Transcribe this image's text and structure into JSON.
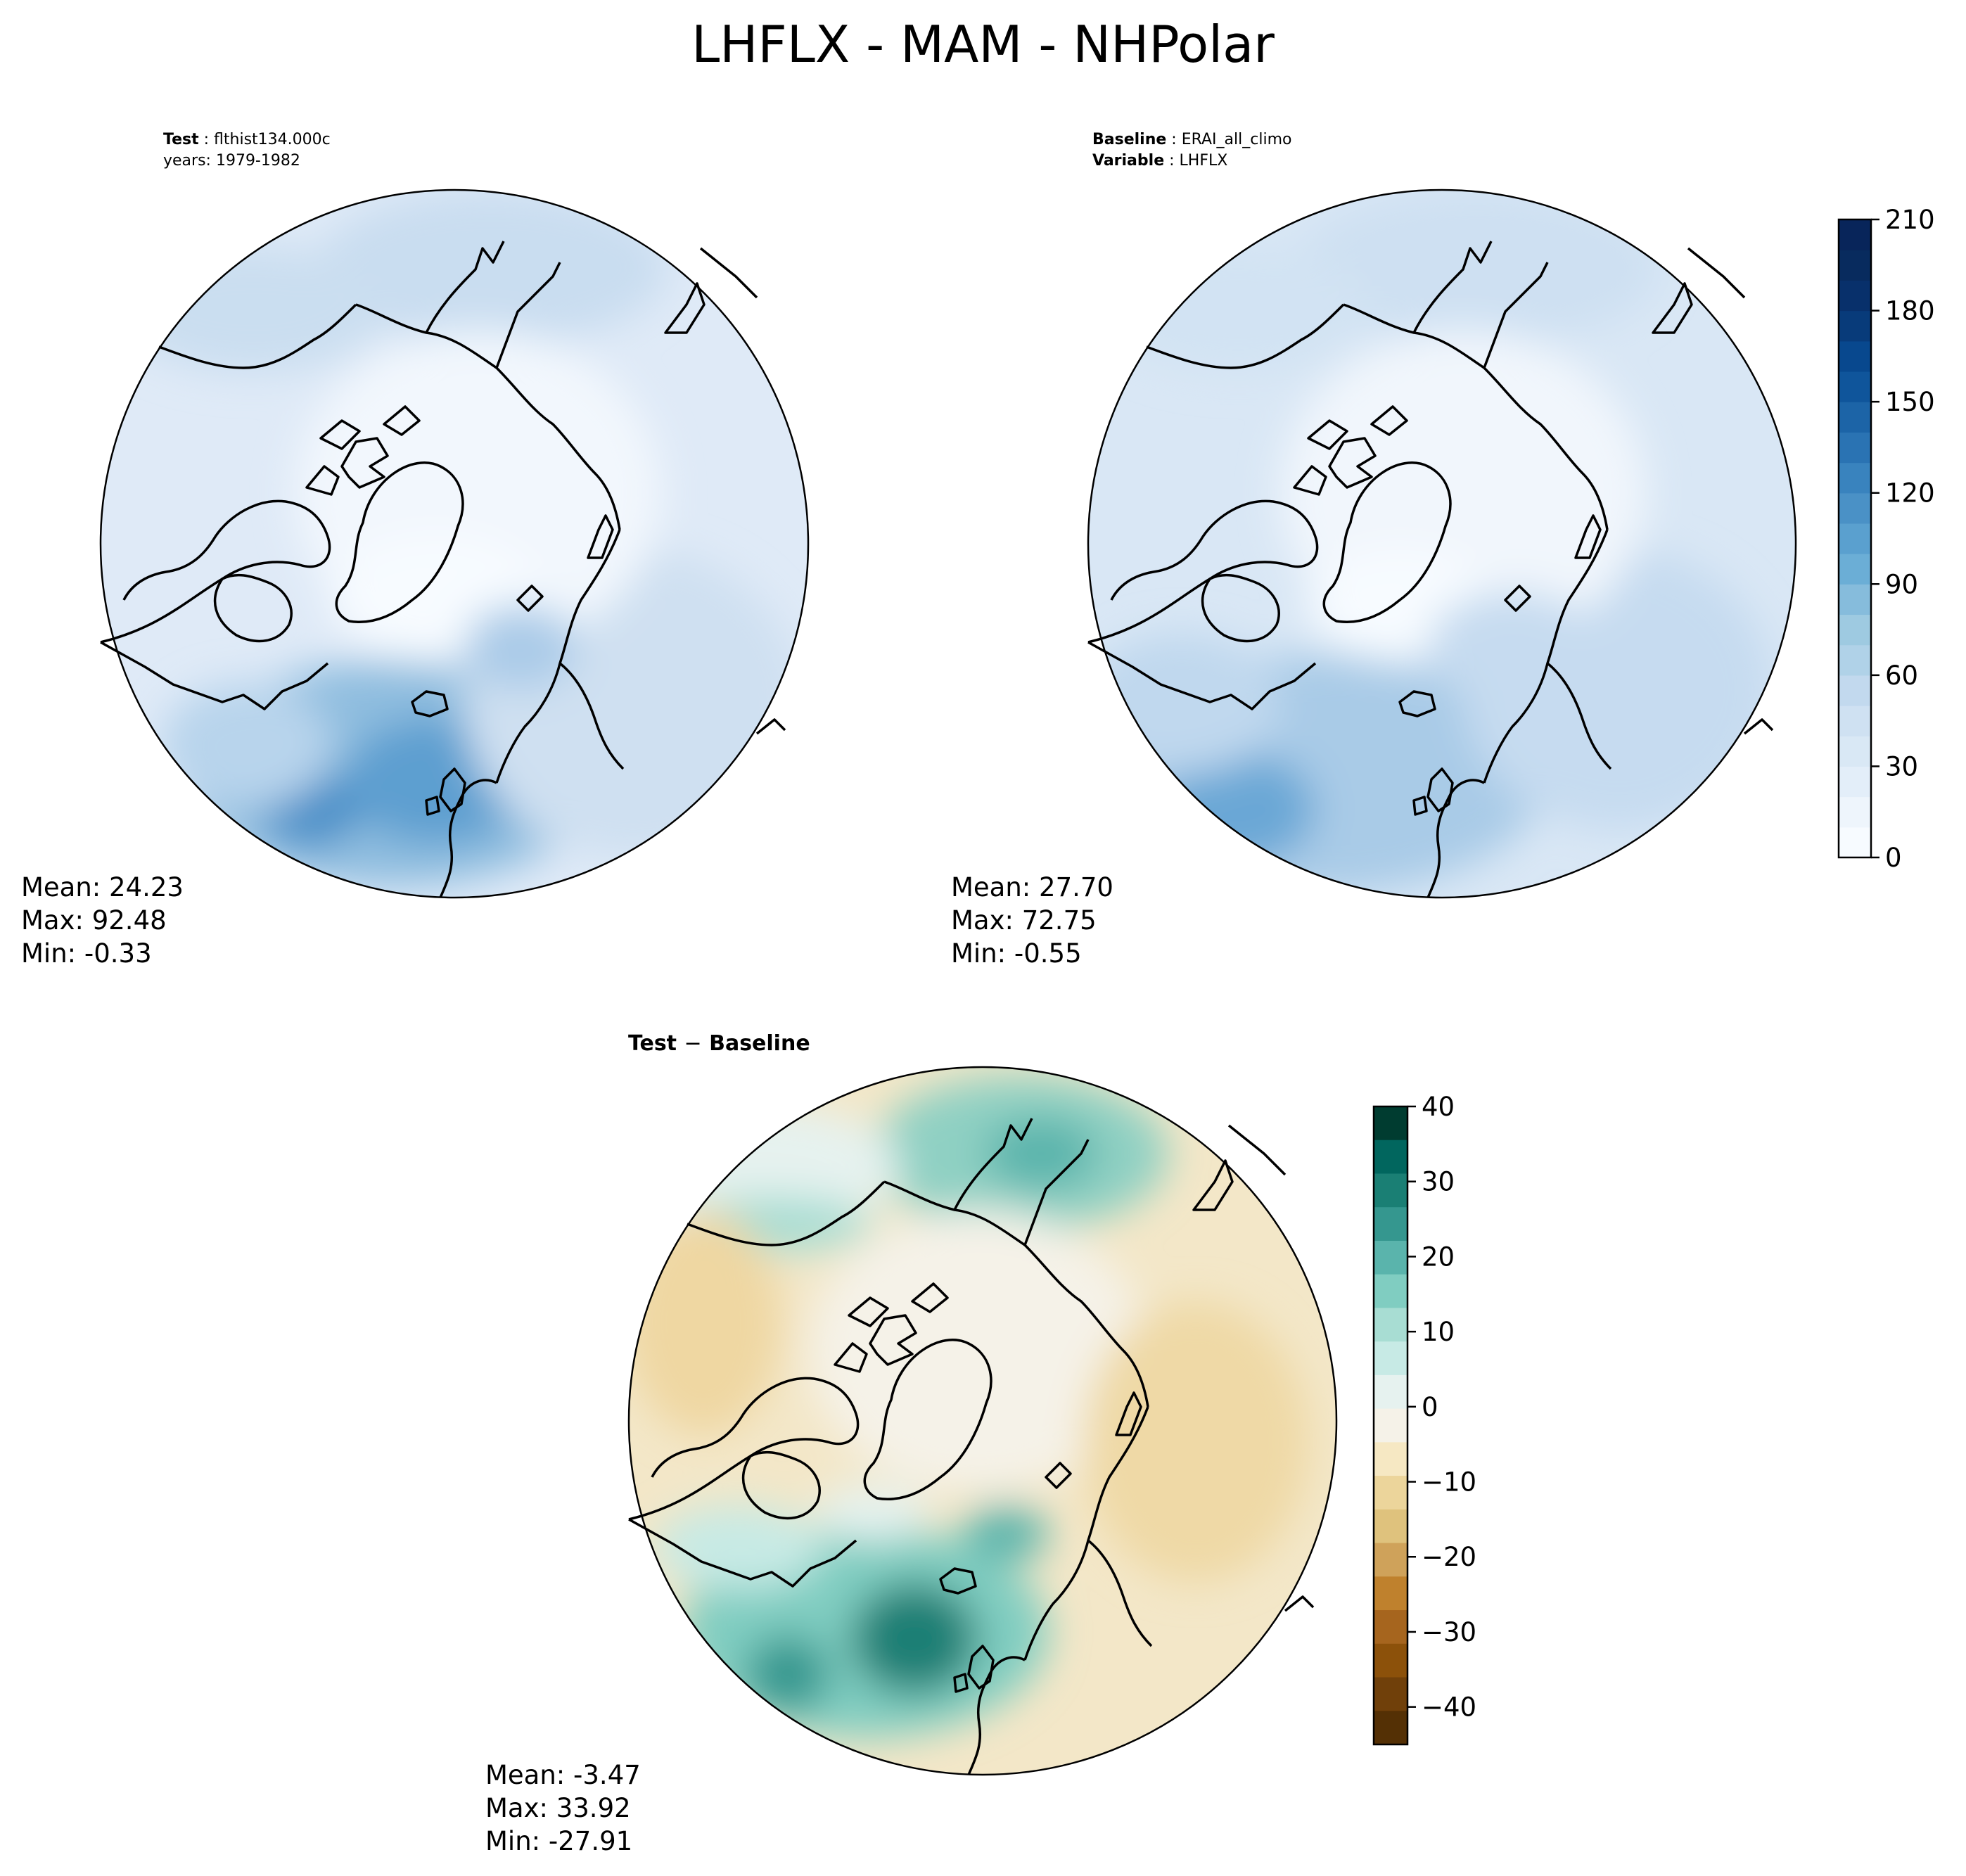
{
  "title": "LHFLX - MAM - NHPolar",
  "test_panel": {
    "label_key": "Test",
    "label_value": "flthist134.000c",
    "years_line": "years: 1979-1982",
    "stats": {
      "mean": "Mean: 24.23",
      "max": "Max: 92.48",
      "min": "Min: -0.33"
    }
  },
  "baseline_panel": {
    "label_key": "Baseline",
    "label_value": "ERAI_all_climo",
    "variable_key": "Variable",
    "variable_value": "LHFLX",
    "stats": {
      "mean": "Mean: 27.70",
      "max": "Max: 72.75",
      "min": "Min: -0.55"
    }
  },
  "diff_panel": {
    "title_left": "Test",
    "title_sep": "−",
    "title_right": "Baseline",
    "stats": {
      "mean": "Mean: -3.47",
      "max": "Max: 33.92",
      "min": "Min: -27.91"
    }
  },
  "colorbar_main": {
    "ticks": [
      "0",
      "30",
      "60",
      "90",
      "120",
      "150",
      "180",
      "210"
    ],
    "range": [
      0,
      210
    ],
    "colors": [
      "#f7fbff",
      "#eef5fc",
      "#e3eef9",
      "#d9e8f5",
      "#cfe1f2",
      "#c2d9ee",
      "#b0d2e8",
      "#9ecae1",
      "#86bcdc",
      "#6baed6",
      "#5aa0cf",
      "#4a91c6",
      "#3983be",
      "#2a73b3",
      "#1c64a7",
      "#0f559b",
      "#08488e",
      "#083b7a",
      "#08306b",
      "#082b5e",
      "#08255a"
    ]
  },
  "colorbar_diff": {
    "ticks": [
      "40",
      "30",
      "20",
      "10",
      "0",
      "−10",
      "−20",
      "−30",
      "−40"
    ],
    "range": [
      -45,
      40
    ],
    "colors": [
      "#003c30",
      "#01665e",
      "#1a7f74",
      "#35978f",
      "#5ab4ac",
      "#80cdc1",
      "#a8ddd3",
      "#c7eae5",
      "#e6f2ef",
      "#f5f2e8",
      "#f6e8c3",
      "#ecd59b",
      "#dfc27d",
      "#cfa25a",
      "#bf812d",
      "#a6651e",
      "#8c510a",
      "#70400a",
      "#543005"
    ]
  },
  "colors": {
    "coast": "#000000",
    "ocean_low": "#eef5fc",
    "ice": "#f7fbff",
    "diff_neutral": "#f5f2e8"
  }
}
